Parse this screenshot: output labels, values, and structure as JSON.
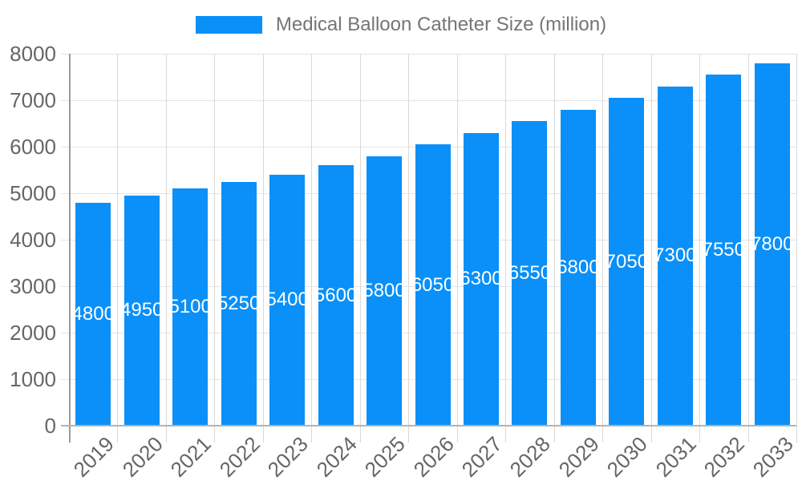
{
  "chart_data": {
    "type": "bar",
    "title": "Medical Balloon Catheter Size (million)",
    "categories": [
      "2019",
      "2020",
      "2021",
      "2022",
      "2023",
      "2024",
      "2025",
      "2026",
      "2027",
      "2028",
      "2029",
      "2030",
      "2031",
      "2032",
      "2033"
    ],
    "series": [
      {
        "name": "Medical Balloon Catheter Size (million)",
        "values": [
          4800,
          4950,
          5100,
          5250,
          5400,
          5600,
          5800,
          6050,
          6300,
          6550,
          6800,
          7050,
          7300,
          7550,
          7800
        ]
      }
    ],
    "xlabel": "",
    "ylabel": "",
    "ylim": [
      0,
      8000
    ],
    "yticks": [
      0,
      1000,
      2000,
      3000,
      4000,
      5000,
      6000,
      7000,
      8000
    ],
    "grid": true,
    "legend_position": "top",
    "bar_value_labels": "inside-center-white-clipped"
  },
  "colors": {
    "bar": "#0a90f8",
    "h_grid": "#e4e4e4",
    "v_grid": "#d9d9d9",
    "axis_line": "#9a9a9a",
    "baseline": "#b3b3b3",
    "axis_text": "#666666",
    "legend_text": "#757575",
    "bar_label_text": "#ffffff",
    "background": "#ffffff"
  }
}
